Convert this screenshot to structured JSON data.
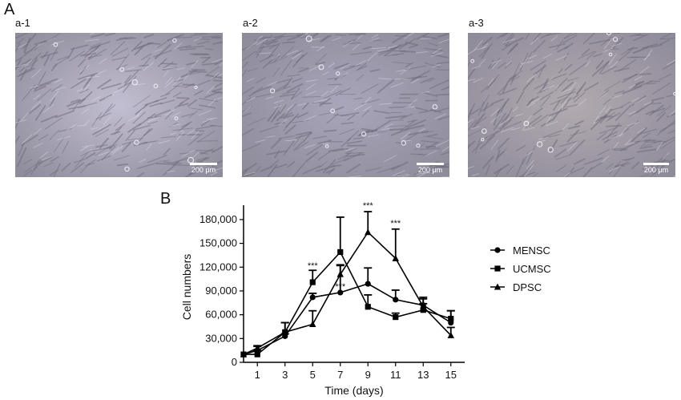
{
  "figure": {
    "panel_a_label": "A",
    "panel_b_label": "B",
    "micrographs": [
      {
        "label": "a-1",
        "scale": "200 μm",
        "tone": "#c3bfd2"
      },
      {
        "label": "a-2",
        "scale": "200 μm",
        "tone": "#a9a6bb"
      },
      {
        "label": "a-3",
        "scale": "200 μm",
        "tone": "#b2aab0"
      }
    ]
  },
  "chart_data": {
    "type": "line",
    "xlabel": "Time (days)",
    "ylabel": "Cell numbers",
    "xticks": [
      1,
      3,
      5,
      7,
      9,
      11,
      13,
      15
    ],
    "yticks": [
      0,
      30000,
      60000,
      90000,
      120000,
      150000,
      180000
    ],
    "ytick_labels": [
      "0",
      "30,000",
      "60,000",
      "90,000",
      "120,000",
      "150,000",
      "180,000"
    ],
    "xlim": [
      0,
      16
    ],
    "ylim": [
      0,
      190000
    ],
    "grid": false,
    "legend_position": "right",
    "x": [
      0,
      1,
      3,
      5,
      7,
      9,
      11,
      13,
      15
    ],
    "series": [
      {
        "name": "MENSC",
        "marker": "circle",
        "values": [
          10000,
          15000,
          33000,
          82000,
          88000,
          99000,
          79000,
          72000,
          50000
        ],
        "errors": [
          0,
          5000,
          3000,
          5000,
          35000,
          20000,
          12000,
          8000,
          15000
        ]
      },
      {
        "name": "UCMSC",
        "marker": "square",
        "values": [
          10000,
          10000,
          38000,
          101000,
          139000,
          70000,
          57000,
          66000,
          55000
        ],
        "errors": [
          0,
          5000,
          12000,
          15000,
          44000,
          15000,
          5000,
          8000,
          10000
        ]
      },
      {
        "name": "DPSC",
        "marker": "triangle",
        "values": [
          10000,
          18000,
          38000,
          48000,
          111000,
          164000,
          131000,
          70000,
          34000
        ],
        "errors": [
          0,
          3000,
          12000,
          17000,
          11000,
          26000,
          37000,
          12000,
          10000
        ]
      }
    ],
    "annotations": [
      {
        "x": 5,
        "y": 118000,
        "text": "***"
      },
      {
        "x": 7,
        "y": 92000,
        "text": "***"
      },
      {
        "x": 9,
        "y": 194000,
        "text": "***"
      },
      {
        "x": 11,
        "y": 172000,
        "text": "***"
      }
    ]
  }
}
